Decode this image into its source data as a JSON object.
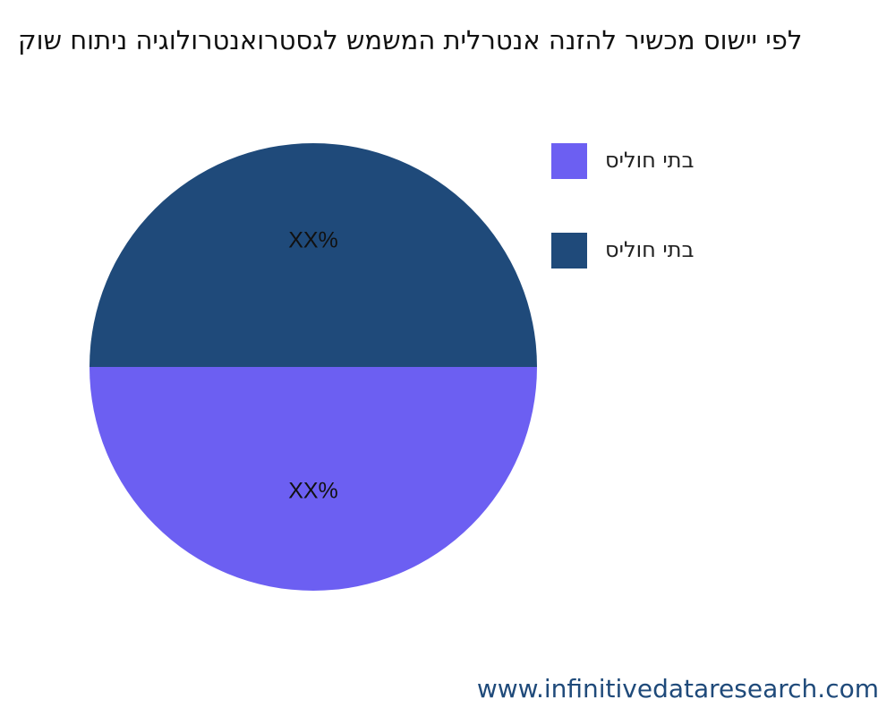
{
  "chart_data": {
    "type": "pie",
    "title": "קוש חותינ היגולורטנאורטסגל שמשמה תילרטנא הנזהל רישכמ סושיי יפל",
    "categories": [
      "סילוח יתב",
      "סילוח יתב"
    ],
    "values": [
      50,
      50
    ],
    "value_labels": [
      "XX%",
      "XX%"
    ],
    "colors": [
      "#6c5ff2",
      "#1f4a7a"
    ]
  },
  "watermark": "www.infinitivedataresearch.com"
}
